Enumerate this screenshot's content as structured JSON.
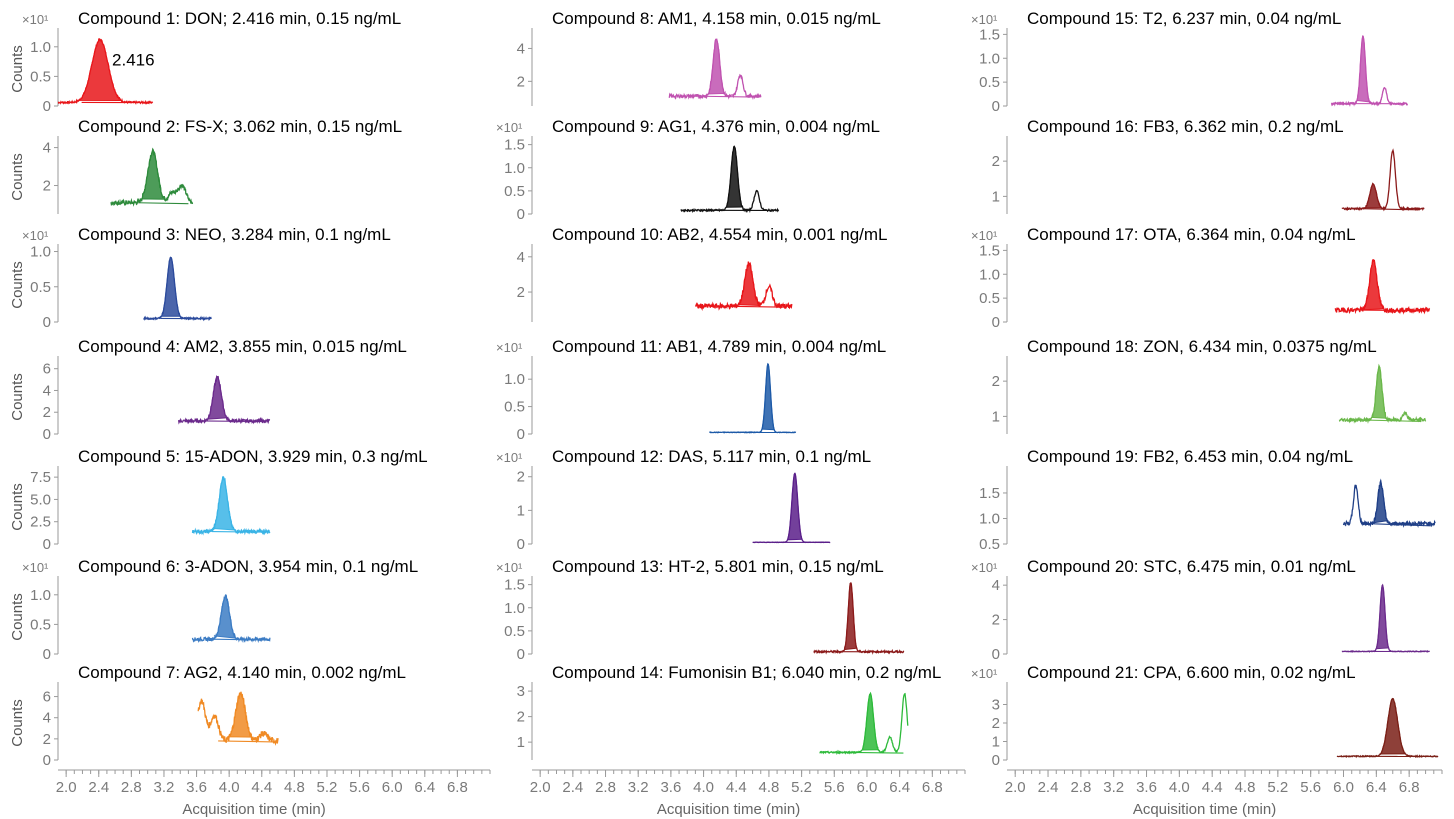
{
  "chart_data": {
    "type": "line",
    "ylabel": "Counts",
    "xlabel": "Acquisition time (min)",
    "x_ticks": [
      "2.0",
      "2.4",
      "2.8",
      "3.2",
      "3.6",
      "4.0",
      "4.4",
      "4.8",
      "5.2",
      "5.6",
      "6.0",
      "6.4",
      "6.8"
    ],
    "xlim": [
      1.9,
      7.2
    ],
    "multiplier_label": "×10¹",
    "panels": [
      {
        "title": "Compound 1: DON; 2.416 min, 0.15 ng/mL",
        "color": "#e8161a",
        "rt": 2.416,
        "x_range": [
          1.9,
          3.06
        ],
        "ylim": [
          0,
          1.25
        ],
        "y_ticks": [
          "0",
          "0.5",
          "1.0"
        ],
        "multiplier": true,
        "peak_height": 1.12,
        "base_level": 0.06,
        "peak_width": 0.1,
        "rt_label": "2.416",
        "ghost": [],
        "noise": 0.015
      },
      {
        "title": "Compound 2: FS-X; 3.062 min, 0.15 ng/mL",
        "color": "#2e8b3c",
        "rt": 3.062,
        "x_range": [
          2.55,
          3.55
        ],
        "ylim": [
          0.5,
          4.4
        ],
        "y_ticks": [
          "2",
          "4"
        ],
        "multiplier": false,
        "peak_height": 3.8,
        "base_level": 1.1,
        "peak_width": 0.06,
        "rt_label": "",
        "ghost": [
          {
            "x": 3.3,
            "h": 1.6
          },
          {
            "x": 3.42,
            "h": 2.0
          }
        ],
        "noise": 0.12
      },
      {
        "title": "Compound 3: NEO, 3.284 min, 0.1 ng/mL",
        "color": "#2b4a9c",
        "rt": 3.284,
        "x_range": [
          2.95,
          3.78
        ],
        "ylim": [
          0,
          1.05
        ],
        "y_ticks": [
          "0",
          "0.5",
          "1.0"
        ],
        "multiplier": true,
        "peak_height": 0.92,
        "base_level": 0.05,
        "peak_width": 0.045,
        "rt_label": "",
        "ghost": [],
        "noise": 0.01
      },
      {
        "title": "Compound 4: AM2, 3.855 min, 0.015 ng/mL",
        "color": "#6b2a8c",
        "rt": 3.855,
        "x_range": [
          3.38,
          4.5
        ],
        "ylim": [
          0,
          6.8
        ],
        "y_ticks": [
          "0",
          "2",
          "4",
          "6"
        ],
        "multiplier": false,
        "peak_height": 5.2,
        "base_level": 1.2,
        "peak_width": 0.05,
        "rt_label": "",
        "ghost": [],
        "noise": 0.15
      },
      {
        "title": "Compound 5: 15-ADON, 3.929 min, 0.3 ng/mL",
        "color": "#3ab4e6",
        "rt": 3.929,
        "x_range": [
          3.55,
          4.5
        ],
        "ylim": [
          0,
          8.3
        ],
        "y_ticks": [
          "0",
          "2.5",
          "5.0",
          "7.5"
        ],
        "multiplier": false,
        "peak_height": 7.5,
        "base_level": 1.4,
        "peak_width": 0.05,
        "rt_label": "",
        "ghost": [],
        "noise": 0.2
      },
      {
        "title": "Compound 6: 3-ADON, 3.954 min, 0.1 ng/mL",
        "color": "#3c7cc4",
        "rt": 3.954,
        "x_range": [
          3.55,
          4.5
        ],
        "ylim": [
          0,
          1.25
        ],
        "y_ticks": [
          "0",
          "0.5",
          "1.0"
        ],
        "multiplier": true,
        "peak_height": 0.98,
        "base_level": 0.25,
        "peak_width": 0.05,
        "rt_label": "",
        "ghost": [],
        "noise": 0.03
      },
      {
        "title": "Compound 7: AG2, 4.140 min, 0.002 ng/mL",
        "color": "#f08a24",
        "rt": 4.14,
        "x_range": [
          3.62,
          4.6
        ],
        "ylim": [
          0,
          7.0
        ],
        "y_ticks": [
          "0",
          "2",
          "4",
          "6"
        ],
        "multiplier": false,
        "peak_height": 6.3,
        "base_level": 1.8,
        "peak_width": 0.06,
        "rt_label": "",
        "ghost": [
          {
            "x": 3.66,
            "h": 5.6
          },
          {
            "x": 3.82,
            "h": 4.2
          },
          {
            "x": 4.42,
            "h": 2.5
          }
        ],
        "noise": 0.3
      },
      {
        "title": "Compound 8: AM1, 4.158 min, 0.015 ng/mL",
        "color": "#c052b0",
        "rt": 4.158,
        "x_range": [
          3.58,
          4.7
        ],
        "ylim": [
          0.5,
          5.0
        ],
        "y_ticks": [
          "2",
          "4"
        ],
        "multiplier": false,
        "peak_height": 4.6,
        "base_level": 1.1,
        "peak_width": 0.04,
        "rt_label": "",
        "ghost": [
          {
            "x": 4.45,
            "h": 2.4
          }
        ],
        "noise": 0.1
      },
      {
        "title": "Compound 9: AG1, 4.376 min, 0.004 ng/mL",
        "color": "#111111",
        "rt": 4.376,
        "x_range": [
          3.72,
          4.92
        ],
        "ylim": [
          0,
          1.6
        ],
        "y_ticks": [
          "0",
          "0.5",
          "1.0",
          "1.5"
        ],
        "multiplier": true,
        "peak_height": 1.45,
        "base_level": 0.08,
        "peak_width": 0.04,
        "rt_label": "",
        "ghost": [
          {
            "x": 4.65,
            "h": 0.5
          }
        ],
        "noise": 0.02
      },
      {
        "title": "Compound 10: AB2, 4.554 min, 0.001 ng/mL",
        "color": "#e8161a",
        "rt": 4.554,
        "x_range": [
          3.9,
          5.08
        ],
        "ylim": [
          0.3,
          4.5
        ],
        "y_ticks": [
          "2",
          "4"
        ],
        "multiplier": false,
        "peak_height": 3.6,
        "base_level": 1.2,
        "peak_width": 0.05,
        "rt_label": "",
        "ghost": [
          {
            "x": 4.8,
            "h": 2.3
          }
        ],
        "noise": 0.15
      },
      {
        "title": "Compound 11: AB1, 4.789 min, 0.004 ng/mL",
        "color": "#1d5aa8",
        "rt": 4.789,
        "x_range": [
          4.07,
          5.13
        ],
        "ylim": [
          0,
          1.35
        ],
        "y_ticks": [
          "0",
          "0.5",
          "1.0"
        ],
        "multiplier": true,
        "peak_height": 1.28,
        "base_level": 0.03,
        "peak_width": 0.03,
        "rt_label": "",
        "ghost": [],
        "noise": 0.005
      },
      {
        "title": "Compound 12: DAS, 5.117 min, 0.1 ng/mL",
        "color": "#5a1f8a",
        "rt": 5.117,
        "x_range": [
          4.6,
          5.55
        ],
        "ylim": [
          0,
          2.2
        ],
        "y_ticks": [
          "0",
          "1",
          "2"
        ],
        "multiplier": true,
        "peak_height": 2.1,
        "base_level": 0.05,
        "peak_width": 0.035,
        "rt_label": "",
        "ghost": [],
        "noise": 0.005
      },
      {
        "title": "Compound 13: HT-2, 5.801 min, 0.15 ng/mL",
        "color": "#8b1a1a",
        "rt": 5.801,
        "x_range": [
          5.35,
          6.45
        ],
        "ylim": [
          0,
          1.6
        ],
        "y_ticks": [
          "0",
          "0.5",
          "1.0",
          "1.5"
        ],
        "multiplier": true,
        "peak_height": 1.55,
        "base_level": 0.05,
        "peak_width": 0.03,
        "rt_label": "",
        "ghost": [],
        "noise": 0.02
      },
      {
        "title": "Compound 14: Fumonisin B1; 6.040 min, 0.2 ng/mL",
        "color": "#2dba3a",
        "rt": 6.04,
        "x_range": [
          5.42,
          6.5
        ],
        "ylim": [
          0.3,
          3.2
        ],
        "y_ticks": [
          "1",
          "2",
          "3"
        ],
        "multiplier": false,
        "peak_height": 2.9,
        "base_level": 0.6,
        "peak_width": 0.04,
        "rt_label": "",
        "ghost": [
          {
            "x": 6.28,
            "h": 1.2
          },
          {
            "x": 6.46,
            "h": 2.9
          }
        ],
        "noise": 0.03
      },
      {
        "title": "Compound 15: T2, 6.237 min, 0.04 ng/mL",
        "color": "#c052b0",
        "rt": 6.237,
        "x_range": [
          5.85,
          6.78
        ],
        "ylim": [
          0,
          1.55
        ],
        "y_ticks": [
          "0",
          "0.5",
          "1.0",
          "1.5"
        ],
        "multiplier": true,
        "peak_height": 1.45,
        "base_level": 0.05,
        "peak_width": 0.03,
        "rt_label": "",
        "ghost": [
          {
            "x": 6.5,
            "h": 0.4
          }
        ],
        "noise": 0.02
      },
      {
        "title": "Compound 16: FB3, 6.362 min, 0.2 ng/mL",
        "color": "#8b1a1a",
        "rt": 6.362,
        "x_range": [
          5.98,
          6.98
        ],
        "ylim": [
          0.5,
          2.6
        ],
        "y_ticks": [
          "1",
          "2"
        ],
        "multiplier": false,
        "peak_height": 1.35,
        "base_level": 0.65,
        "peak_width": 0.04,
        "rt_label": "",
        "ghost": [
          {
            "x": 6.6,
            "h": 2.3
          }
        ],
        "noise": 0.02
      },
      {
        "title": "Compound 17: OTA, 6.364 min, 0.04 ng/mL",
        "color": "#e8161a",
        "rt": 6.364,
        "x_range": [
          5.9,
          7.05
        ],
        "ylim": [
          0,
          1.55
        ],
        "y_ticks": [
          "0",
          "0.5",
          "1.0",
          "1.5"
        ],
        "multiplier": true,
        "peak_height": 1.3,
        "base_level": 0.25,
        "peak_width": 0.045,
        "rt_label": "",
        "ghost": [],
        "noise": 0.05
      },
      {
        "title": "Compound 18: ZON, 6.434 min, 0.0375 ng/mL",
        "color": "#6ab74a",
        "rt": 6.434,
        "x_range": [
          5.95,
          7.0
        ],
        "ylim": [
          0.5,
          2.6
        ],
        "y_ticks": [
          "1",
          "2"
        ],
        "multiplier": false,
        "peak_height": 2.4,
        "base_level": 0.9,
        "peak_width": 0.035,
        "rt_label": "",
        "ghost": [
          {
            "x": 6.75,
            "h": 1.1
          }
        ],
        "noise": 0.05
      },
      {
        "title": "Compound 19: FB2, 6.453 min, 0.04 ng/mL",
        "color": "#1f3f87",
        "rt": 6.453,
        "x_range": [
          6.0,
          7.12
        ],
        "ylim": [
          0.5,
          1.95
        ],
        "y_ticks": [
          "0.5",
          "1.0",
          "1.5"
        ],
        "multiplier": false,
        "peak_height": 1.7,
        "base_level": 0.9,
        "peak_width": 0.035,
        "rt_label": "",
        "ghost": [
          {
            "x": 6.15,
            "h": 1.65
          }
        ],
        "noise": 0.04
      },
      {
        "title": "Compound 20: STC, 6.475 min, 0.01 ng/mL",
        "color": "#6b2a8c",
        "rt": 6.475,
        "x_range": [
          5.98,
          7.05
        ],
        "ylim": [
          0,
          4.3
        ],
        "y_ticks": [
          "0",
          "2",
          "4"
        ],
        "multiplier": true,
        "peak_height": 4.0,
        "base_level": 0.15,
        "peak_width": 0.03,
        "rt_label": "",
        "ghost": [],
        "noise": 0.02
      },
      {
        "title": "Compound 21: CPA, 6.600 min, 0.02 ng/mL",
        "color": "#7a1f16",
        "rt": 6.6,
        "x_range": [
          5.92,
          7.15
        ],
        "ylim": [
          0,
          4.0
        ],
        "y_ticks": [
          "0",
          "1",
          "2",
          "3"
        ],
        "multiplier": true,
        "peak_height": 3.3,
        "base_level": 0.2,
        "peak_width": 0.06,
        "rt_label": "",
        "ghost": [],
        "noise": 0.03
      }
    ]
  }
}
